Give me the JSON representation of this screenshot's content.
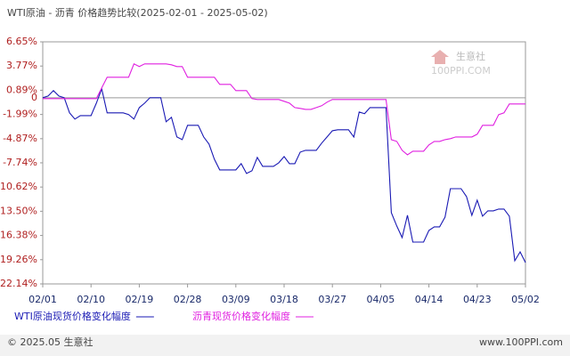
{
  "chart_data": {
    "type": "line",
    "title": "WTI原油 - 沥青 价格趋势比较(2025-02-01 - 2025-05-02)",
    "watermark": {
      "name": "生意社",
      "site": "100PPI.COM"
    },
    "footer": {
      "left": "© 2025.05 生意社",
      "right": "www.100PPI.com"
    },
    "categories": [
      "02/01",
      null,
      null,
      null,
      null,
      null,
      null,
      null,
      null,
      "02/10",
      null,
      null,
      null,
      null,
      null,
      null,
      null,
      null,
      "02/19",
      null,
      null,
      null,
      null,
      null,
      null,
      null,
      null,
      "02/28",
      null,
      null,
      null,
      null,
      null,
      null,
      null,
      null,
      "03/09",
      null,
      null,
      null,
      null,
      null,
      null,
      null,
      null,
      "03/18",
      null,
      null,
      null,
      null,
      null,
      null,
      null,
      null,
      "03/27",
      null,
      null,
      null,
      null,
      null,
      null,
      null,
      null,
      "04/05",
      null,
      null,
      null,
      null,
      null,
      null,
      null,
      null,
      "04/14",
      null,
      null,
      null,
      null,
      null,
      null,
      null,
      null,
      "04/23",
      null,
      null,
      null,
      null,
      null,
      null,
      null,
      null,
      "05/02"
    ],
    "series": [
      {
        "name": "WTI原油现货价格变化幅度",
        "color": "#1a1ab4",
        "values": [
          0,
          0.2,
          0.85,
          0.2,
          0,
          -1.8,
          -2.54,
          -2.12,
          -2.12,
          -2.12,
          -0.64,
          1.06,
          -1.8,
          -1.8,
          -1.8,
          -1.8,
          -2.0,
          -2.54,
          -1.17,
          -0.64,
          0,
          0,
          0,
          -2.86,
          -2.33,
          -4.66,
          -4.98,
          -3.28,
          -3.28,
          -3.28,
          -4.66,
          -5.51,
          -7.31,
          -8.58,
          -8.58,
          -8.58,
          -8.58,
          -7.84,
          -9.0,
          -8.69,
          -7.1,
          -8.16,
          -8.16,
          -8.16,
          -7.73,
          -6.99,
          -7.84,
          -7.84,
          -6.46,
          -6.25,
          -6.25,
          -6.25,
          -5.4,
          -4.66,
          -3.92,
          -3.81,
          -3.81,
          -3.81,
          -4.66,
          -1.69,
          -1.9,
          -1.17,
          -1.17,
          -1.17,
          -1.17,
          -13.67,
          -15.25,
          -16.63,
          -13.98,
          -17.16,
          -17.16,
          -17.16,
          -15.78,
          -15.36,
          -15.36,
          -14.19,
          -10.81,
          -10.81,
          -10.81,
          -11.76,
          -13.98,
          -12.18,
          -14.09,
          -13.45,
          -13.45,
          -13.24,
          -13.24,
          -14.09,
          -19.39,
          -18.33,
          -19.6
        ]
      },
      {
        "name": "沥青现货价格变化幅度",
        "color": "#e020e0",
        "values": [
          -0.1,
          -0.1,
          -0.1,
          -0.1,
          -0.1,
          -0.1,
          -0.1,
          -0.1,
          -0.1,
          -0.1,
          -0.1,
          1.17,
          2.44,
          2.44,
          2.44,
          2.44,
          2.44,
          4.03,
          3.71,
          4.03,
          4.03,
          4.03,
          4.03,
          4.03,
          3.92,
          3.71,
          3.71,
          2.44,
          2.44,
          2.44,
          2.44,
          2.44,
          2.44,
          1.59,
          1.59,
          1.59,
          0.85,
          0.85,
          0.85,
          -0.1,
          -0.21,
          -0.21,
          -0.21,
          -0.21,
          -0.21,
          -0.42,
          -0.64,
          -1.17,
          -1.27,
          -1.38,
          -1.38,
          -1.17,
          -0.95,
          -0.53,
          -0.21,
          -0.21,
          -0.21,
          -0.21,
          -0.21,
          -0.21,
          -0.21,
          -0.21,
          -0.21,
          -0.21,
          -0.21,
          -4.98,
          -5.19,
          -6.25,
          -6.78,
          -6.36,
          -6.36,
          -6.36,
          -5.61,
          -5.19,
          -5.19,
          -4.98,
          -4.87,
          -4.66,
          -4.66,
          -4.66,
          -4.66,
          -4.34,
          -3.28,
          -3.28,
          -3.28,
          -2.01,
          -1.8,
          -0.74,
          -0.74,
          -0.74,
          -0.74
        ]
      }
    ],
    "ylim": [
      -22.14,
      6.65
    ],
    "yticks": [
      {
        "value": 6.65,
        "label": "6.65%"
      },
      {
        "value": 3.77,
        "label": "3.77%"
      },
      {
        "value": 0.89,
        "label": "0.89%"
      },
      0,
      {
        "value": -1.99,
        "label": "-1.99%"
      },
      {
        "value": -4.87,
        "label": "-4.87%"
      },
      {
        "value": -7.74,
        "label": "-7.74%"
      },
      {
        "value": -10.62,
        "label": "-10.62%"
      },
      {
        "value": -13.5,
        "label": "-13.50%"
      },
      {
        "value": -16.38,
        "label": "-16.38%"
      },
      {
        "value": -19.26,
        "label": "-19.26%"
      },
      {
        "value": -22.14,
        "label": "-22.14%"
      }
    ],
    "zero_line": true
  }
}
